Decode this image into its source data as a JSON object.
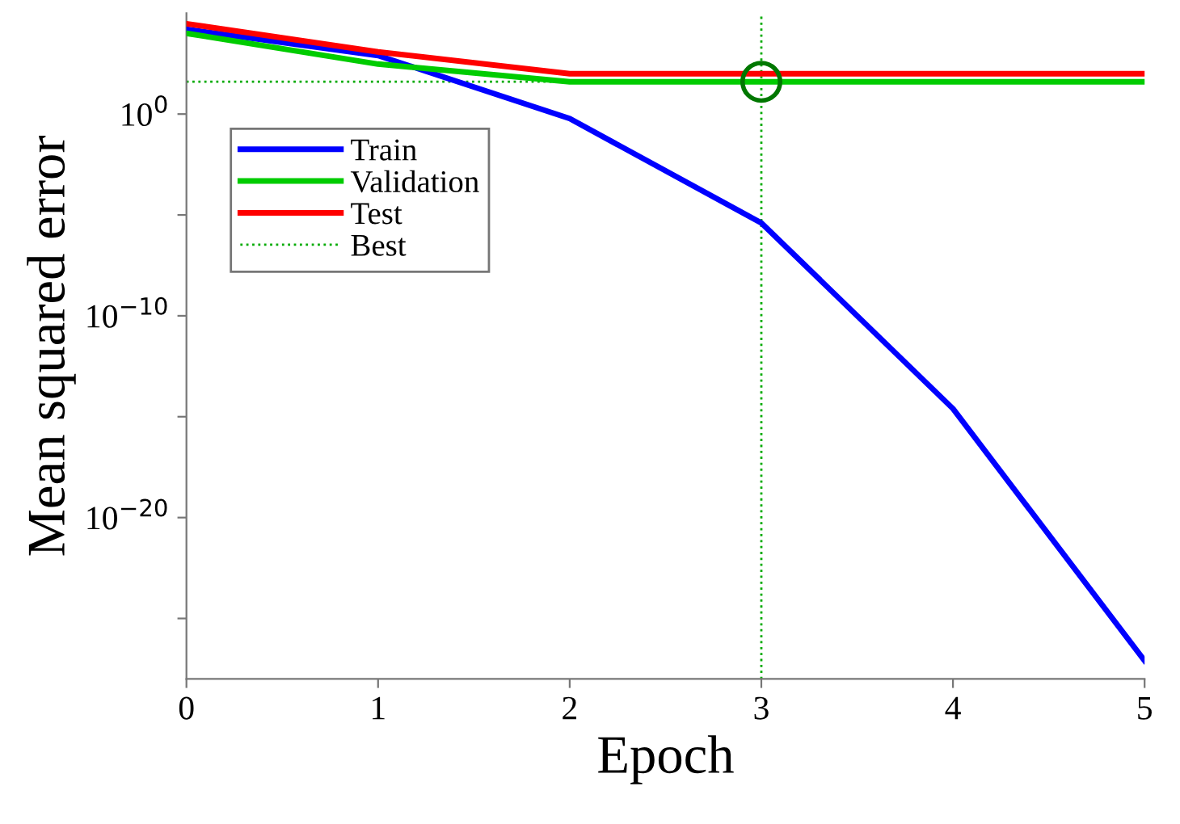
{
  "chart_data": {
    "type": "line",
    "xlabel": "Epoch",
    "ylabel": "Mean squared error",
    "log": "y",
    "x": [
      0,
      1,
      2,
      3,
      4,
      5
    ],
    "xlim": [
      0,
      5
    ],
    "xticks": [
      0,
      1,
      2,
      3,
      4,
      5
    ],
    "ylim": [
      1e-28,
      100000.0
    ],
    "yticks": [
      {
        "value": 1,
        "label": "10$^{0}$"
      },
      {
        "value": 1e-10,
        "label": "10$^{−10}$"
      },
      {
        "value": 1e-20,
        "label": "10$^{−20}$"
      },
      {
        "value": 1e-05,
        "label": null
      },
      {
        "value": 1e-15,
        "label": null
      },
      {
        "value": 1e-25,
        "label": null
      }
    ],
    "grid": false,
    "legend": "top left",
    "marker": "none",
    "line_style": "solid",
    "series": [
      {
        "name": "Train",
        "color": "#0000ff",
        "values": [
          16000.0,
          800.0,
          0.6,
          4e-06,
          2.5e-15,
          8e-28
        ]
      },
      {
        "name": "Validation",
        "color": "#00cc00",
        "values": [
          10000.0,
          300.0,
          40,
          40,
          40,
          40
        ]
      },
      {
        "name": "Test",
        "color": "#ff0000",
        "values": [
          30000.0,
          1200.0,
          100,
          100,
          100,
          100
        ]
      },
      {
        "type": "scatter",
        "color": "#007700",
        "marker": "circle",
        "x": [
          3
        ],
        "values": [
          40
        ]
      }
    ],
    "ref_lines": [
      {
        "axis": "y",
        "value": 40,
        "label": "Best",
        "color": "#00aa00",
        "line_style": "dotted"
      },
      {
        "axis": "x",
        "value": 3,
        "color": "#00aa00",
        "line_style": "dotted"
      }
    ]
  }
}
